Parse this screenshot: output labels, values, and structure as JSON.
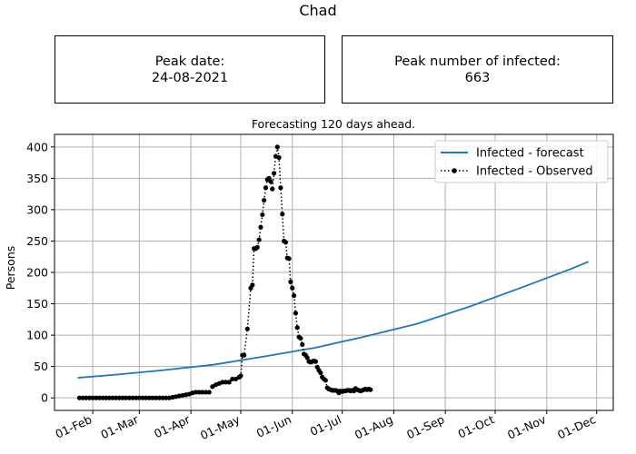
{
  "title": "Chad",
  "peak_date_box": {
    "label": "Peak date:",
    "value": "24-08-2021"
  },
  "peak_count_box": {
    "label": "Peak number of infected:",
    "value": "663"
  },
  "colors": {
    "forecast": "#1f77b4",
    "observed": "#000000",
    "grid": "#b0b0b0"
  },
  "chart_data": {
    "type": "line",
    "title": "Forecasting 120 days ahead.",
    "xlabel": "",
    "ylabel": "Persons",
    "x_is_date": true,
    "xlim": [
      "2021-01-09",
      "2021-12-11"
    ],
    "ylim": [
      -20,
      420
    ],
    "yticks": [
      0,
      50,
      100,
      150,
      200,
      250,
      300,
      350,
      400
    ],
    "xticks": [
      {
        "date": "2021-02-01",
        "label": "01-Feb"
      },
      {
        "date": "2021-03-01",
        "label": "01-Mar"
      },
      {
        "date": "2021-04-01",
        "label": "01-Apr"
      },
      {
        "date": "2021-05-01",
        "label": "01-May"
      },
      {
        "date": "2021-06-01",
        "label": "01-Jun"
      },
      {
        "date": "2021-07-01",
        "label": "01-Jul"
      },
      {
        "date": "2021-08-01",
        "label": "01-Aug"
      },
      {
        "date": "2021-09-01",
        "label": "01-Sep"
      },
      {
        "date": "2021-10-01",
        "label": "01-Oct"
      },
      {
        "date": "2021-11-01",
        "label": "01-Nov"
      },
      {
        "date": "2021-12-01",
        "label": "01-Dec"
      }
    ],
    "grid": true,
    "legend_position": "top-right",
    "series": [
      {
        "name": "Infected - forecast",
        "style": "solid",
        "points": [
          [
            "2021-01-23",
            32
          ],
          [
            "2021-02-15",
            37
          ],
          [
            "2021-03-15",
            44
          ],
          [
            "2021-04-15",
            53
          ],
          [
            "2021-05-15",
            66
          ],
          [
            "2021-06-15",
            80
          ],
          [
            "2021-07-15",
            98
          ],
          [
            "2021-08-15",
            118
          ],
          [
            "2021-09-15",
            145
          ],
          [
            "2021-10-15",
            174
          ],
          [
            "2021-11-15",
            205
          ],
          [
            "2021-11-26",
            217
          ]
        ]
      },
      {
        "name": "Infected - Observed",
        "style": "dotted-markers",
        "points": [
          [
            "2021-01-24",
            0
          ],
          [
            "2021-01-26",
            0
          ],
          [
            "2021-01-28",
            0
          ],
          [
            "2021-01-30",
            0
          ],
          [
            "2021-02-01",
            0
          ],
          [
            "2021-02-03",
            0
          ],
          [
            "2021-02-05",
            0
          ],
          [
            "2021-02-07",
            0
          ],
          [
            "2021-02-09",
            0
          ],
          [
            "2021-02-11",
            0
          ],
          [
            "2021-02-13",
            0
          ],
          [
            "2021-02-15",
            0
          ],
          [
            "2021-02-17",
            0
          ],
          [
            "2021-02-19",
            0
          ],
          [
            "2021-02-21",
            0
          ],
          [
            "2021-02-23",
            0
          ],
          [
            "2021-02-25",
            0
          ],
          [
            "2021-02-27",
            0
          ],
          [
            "2021-03-01",
            0
          ],
          [
            "2021-03-03",
            0
          ],
          [
            "2021-03-05",
            0
          ],
          [
            "2021-03-07",
            0
          ],
          [
            "2021-03-09",
            0
          ],
          [
            "2021-03-11",
            0
          ],
          [
            "2021-03-13",
            0
          ],
          [
            "2021-03-15",
            0
          ],
          [
            "2021-03-17",
            0
          ],
          [
            "2021-03-19",
            0
          ],
          [
            "2021-03-21",
            1
          ],
          [
            "2021-03-23",
            2
          ],
          [
            "2021-03-25",
            3
          ],
          [
            "2021-03-27",
            4
          ],
          [
            "2021-03-29",
            5
          ],
          [
            "2021-03-31",
            6
          ],
          [
            "2021-04-02",
            8
          ],
          [
            "2021-04-04",
            9
          ],
          [
            "2021-04-06",
            9
          ],
          [
            "2021-04-08",
            9
          ],
          [
            "2021-04-10",
            9
          ],
          [
            "2021-04-12",
            9
          ],
          [
            "2021-04-14",
            18
          ],
          [
            "2021-04-16",
            21
          ],
          [
            "2021-04-18",
            23
          ],
          [
            "2021-04-20",
            25
          ],
          [
            "2021-04-22",
            25
          ],
          [
            "2021-04-24",
            25
          ],
          [
            "2021-04-26",
            30
          ],
          [
            "2021-04-28",
            30
          ],
          [
            "2021-04-30",
            33
          ],
          [
            "2021-05-01",
            35
          ],
          [
            "2021-05-02",
            68
          ],
          [
            "2021-05-03",
            68
          ],
          [
            "2021-05-05",
            110
          ],
          [
            "2021-05-07",
            175
          ],
          [
            "2021-05-08",
            180
          ],
          [
            "2021-05-09",
            238
          ],
          [
            "2021-05-10",
            238
          ],
          [
            "2021-05-11",
            240
          ],
          [
            "2021-05-12",
            252
          ],
          [
            "2021-05-13",
            272
          ],
          [
            "2021-05-14",
            292
          ],
          [
            "2021-05-15",
            315
          ],
          [
            "2021-05-16",
            335
          ],
          [
            "2021-05-17",
            348
          ],
          [
            "2021-05-18",
            350
          ],
          [
            "2021-05-19",
            345
          ],
          [
            "2021-05-20",
            333
          ],
          [
            "2021-05-21",
            358
          ],
          [
            "2021-05-22",
            385
          ],
          [
            "2021-05-23",
            400
          ],
          [
            "2021-05-24",
            383
          ],
          [
            "2021-05-25",
            335
          ],
          [
            "2021-05-26",
            293
          ],
          [
            "2021-05-27",
            250
          ],
          [
            "2021-05-28",
            248
          ],
          [
            "2021-05-29",
            223
          ],
          [
            "2021-05-30",
            222
          ],
          [
            "2021-05-31",
            185
          ],
          [
            "2021-06-01",
            175
          ],
          [
            "2021-06-02",
            163
          ],
          [
            "2021-06-03",
            135
          ],
          [
            "2021-06-04",
            112
          ],
          [
            "2021-06-05",
            97
          ],
          [
            "2021-06-06",
            95
          ],
          [
            "2021-06-07",
            85
          ],
          [
            "2021-06-08",
            70
          ],
          [
            "2021-06-09",
            68
          ],
          [
            "2021-06-10",
            64
          ],
          [
            "2021-06-11",
            58
          ],
          [
            "2021-06-12",
            57
          ],
          [
            "2021-06-13",
            58
          ],
          [
            "2021-06-14",
            59
          ],
          [
            "2021-06-15",
            58
          ],
          [
            "2021-06-16",
            49
          ],
          [
            "2021-06-17",
            44
          ],
          [
            "2021-06-18",
            40
          ],
          [
            "2021-06-19",
            33
          ],
          [
            "2021-06-20",
            30
          ],
          [
            "2021-06-21",
            28
          ],
          [
            "2021-06-22",
            16
          ],
          [
            "2021-06-23",
            14
          ],
          [
            "2021-06-24",
            13
          ],
          [
            "2021-06-25",
            12
          ],
          [
            "2021-06-26",
            12
          ],
          [
            "2021-06-27",
            12
          ],
          [
            "2021-06-28",
            11
          ],
          [
            "2021-06-29",
            8
          ],
          [
            "2021-06-30",
            11
          ],
          [
            "2021-07-01",
            10
          ],
          [
            "2021-07-02",
            11
          ],
          [
            "2021-07-03",
            11
          ],
          [
            "2021-07-04",
            12
          ],
          [
            "2021-07-05",
            12
          ],
          [
            "2021-07-06",
            11
          ],
          [
            "2021-07-07",
            12
          ],
          [
            "2021-07-08",
            11
          ],
          [
            "2021-07-09",
            15
          ],
          [
            "2021-07-10",
            13
          ],
          [
            "2021-07-11",
            12
          ],
          [
            "2021-07-12",
            11
          ],
          [
            "2021-07-13",
            12
          ],
          [
            "2021-07-14",
            13
          ],
          [
            "2021-07-15",
            14
          ],
          [
            "2021-07-16",
            13
          ],
          [
            "2021-07-17",
            14
          ],
          [
            "2021-07-18",
            13
          ]
        ]
      }
    ]
  }
}
